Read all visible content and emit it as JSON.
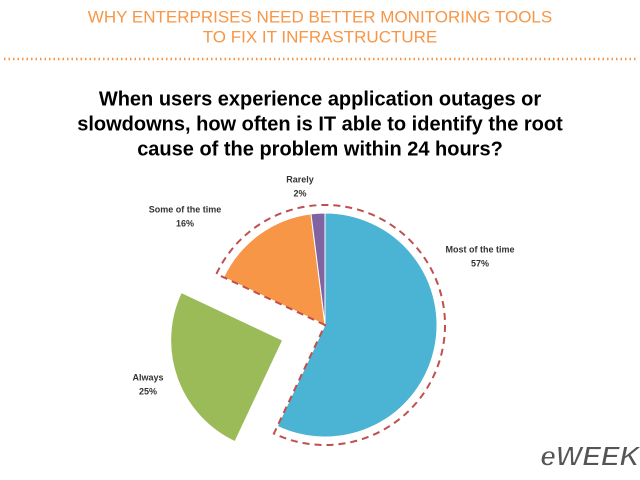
{
  "header": {
    "title_lines": [
      "WHY ENTERPRISES NEED BETTER MONITORING TOOLS",
      "TO FIX IT INFRASTRUCTURE"
    ]
  },
  "chart_data": {
    "type": "pie",
    "title": [
      "When users experience application outages or",
      "slowdowns, how often is IT able to identify the root",
      "cause of the problem within 24 hours?"
    ],
    "categories": [
      "Most of the time",
      "Always",
      "Some of the time",
      "Rarely"
    ],
    "values": [
      57,
      25,
      16,
      2
    ],
    "value_labels": [
      "57%",
      "25%",
      "16%",
      "2%"
    ],
    "colors": [
      "#4bb3d3",
      "#9bbb59",
      "#f79646",
      "#8064a2"
    ]
  },
  "logo": "eWEEK"
}
